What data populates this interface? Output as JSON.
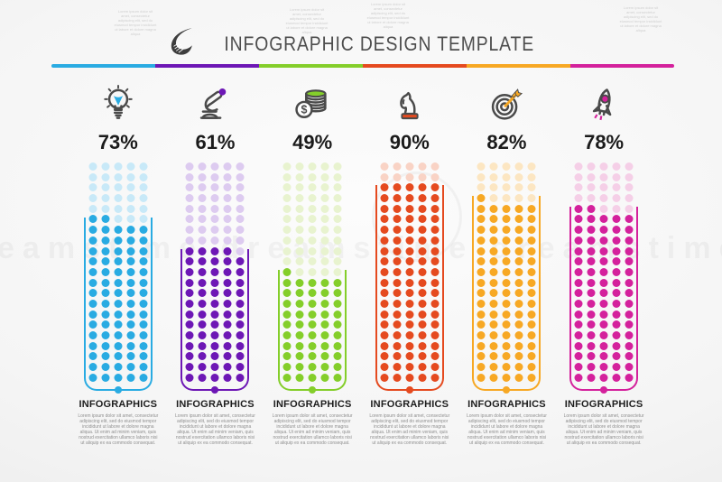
{
  "header": {
    "title": "INFOGRAPHIC DESIGN TEMPLATE",
    "logo": "swoosh-logo"
  },
  "watermark": {
    "text": "dreamstime dreamstime dreamstime"
  },
  "top_notes": [
    {
      "text": "Lorem ipsum dolor sit amet, consectetur adipiscing elit, sed do eiusmod tempor incididunt ut labore et dolore magna aliqua"
    },
    {
      "text": "Lorem ipsum dolor sit amet, consectetur adipiscing elit, sed do eiusmod tempor incididunt ut labore et dolore magna aliqua"
    },
    {
      "text": "Lorem ipsum dolor sit amet, consectetur adipiscing elit, sed do eiusmod tempor incididunt ut labore et dolore magna aliqua"
    },
    {
      "text": "Lorem ipsum dolor sit amet, consectetur adipiscing elit, sed do eiusmod tempor incididunt ut labore et dolore magna aliqua"
    }
  ],
  "grid": {
    "rows": 21,
    "cols": 5
  },
  "columns": [
    {
      "icon": "lightbulb-icon",
      "percent": "73%",
      "value": 73,
      "color": "#29abe2",
      "color_faded": "#c8e9f8",
      "label": "INFOGRAPHICS",
      "description": "Lorem ipsum dolor sit amet, consectetur adipiscing elit, sed do eiusmod tempor incididunt ut labore et dolore magna aliqua. Ut enim ad minim veniam, quis nostrud exercitation ullamco laboris nisi ut aliquip ex ea commodo consequat."
    },
    {
      "icon": "microscope-icon",
      "percent": "61%",
      "value": 61,
      "color": "#6d17b5",
      "color_faded": "#ddcbf0",
      "label": "INFOGRAPHICS",
      "description": "Lorem ipsum dolor sit amet, consectetur adipiscing elit, sed do eiusmod tempor incididunt ut labore et dolore magna aliqua. Ut enim ad minim veniam, quis nostrud exercitation ullamco laboris nisi ut aliquip ex ea commodo consequat."
    },
    {
      "icon": "coins-icon",
      "percent": "49%",
      "value": 49,
      "color": "#84ce2a",
      "color_faded": "#e8f3cf",
      "label": "INFOGRAPHICS",
      "description": "Lorem ipsum dolor sit amet, consectetur adipiscing elit, sed do eiusmod tempor incididunt ut labore et dolore magna aliqua. Ut enim ad minim veniam, quis nostrud exercitation ullamco laboris nisi ut aliquip ex ea commodo consequat."
    },
    {
      "icon": "chess-knight-icon",
      "percent": "90%",
      "value": 90,
      "color": "#e54a1f",
      "color_faded": "#f9d3c5",
      "label": "INFOGRAPHICS",
      "description": "Lorem ipsum dolor sit amet, consectetur adipiscing elit, sed do eiusmod tempor incididunt ut labore et dolore magna aliqua. Ut enim ad minim veniam, quis nostrud exercitation ullamco laboris nisi ut aliquip ex ea commodo consequat."
    },
    {
      "icon": "target-arrow-icon",
      "percent": "82%",
      "value": 82,
      "color": "#f7a824",
      "color_faded": "#fce6c2",
      "label": "INFOGRAPHICS",
      "description": "Lorem ipsum dolor sit amet, consectetur adipiscing elit, sed do eiusmod tempor incididunt ut labore et dolore magna aliqua. Ut enim ad minim veniam, quis nostrud exercitation ullamco laboris nisi ut aliquip ex ea commodo consequat."
    },
    {
      "icon": "rocket-icon",
      "percent": "78%",
      "value": 78,
      "color": "#d4219c",
      "color_faded": "#f5cfe7",
      "label": "INFOGRAPHICS",
      "description": "Lorem ipsum dolor sit amet, consectetur adipiscing elit, sed do eiusmod tempor incididunt ut labore et dolore magna aliqua. Ut enim ad minim veniam, quis nostrud exercitation ullamco laboris nisi ut aliquip ex ea commodo consequat."
    }
  ],
  "chart_data": {
    "type": "bar",
    "subtype": "dot-matrix",
    "title": "INFOGRAPHIC DESIGN TEMPLATE",
    "categories": [
      "lightbulb",
      "microscope",
      "coins",
      "chess-knight",
      "target",
      "rocket"
    ],
    "values": [
      73,
      61,
      49,
      90,
      82,
      78
    ],
    "value_labels": [
      "73%",
      "61%",
      "49%",
      "90%",
      "82%",
      "78%"
    ],
    "series_colors": [
      "#29abe2",
      "#6d17b5",
      "#84ce2a",
      "#e54a1f",
      "#f7a824",
      "#d4219c"
    ],
    "ylim": [
      0,
      100
    ],
    "grid": "21 rows x 5 cols of dots per column",
    "legend": "none"
  }
}
